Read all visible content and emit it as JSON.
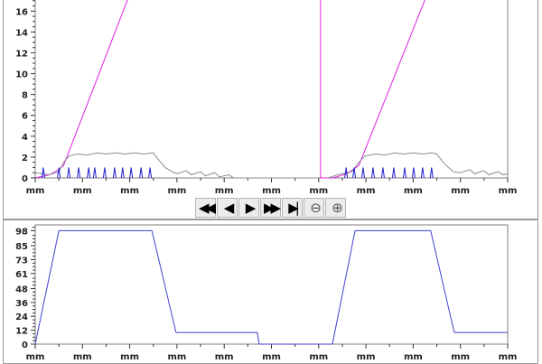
{
  "toolbar": {
    "buttons": [
      {
        "name": "rewind-button",
        "icon": "fast-backward-icon",
        "glyph": "◀◀"
      },
      {
        "name": "step-back-button",
        "icon": "step-backward-icon",
        "glyph": "◀"
      },
      {
        "name": "play-button",
        "icon": "play-icon",
        "glyph": "▶"
      },
      {
        "name": "fast-forward-button",
        "icon": "fast-forward-icon",
        "glyph": "▶▶"
      },
      {
        "name": "skip-end-button",
        "icon": "skip-to-end-icon",
        "glyph": "▶|"
      },
      {
        "name": "zoom-out-button",
        "icon": "zoom-out-icon",
        "glyph": "⊖"
      },
      {
        "name": "zoom-in-button",
        "icon": "zoom-in-icon",
        "glyph": "⊕"
      }
    ]
  },
  "chart_data": [
    {
      "type": "line",
      "xlabel": "",
      "ylabel": "",
      "x_tick_labels": [
        "mm",
        "mm",
        "mm",
        "mm",
        "mm",
        "mm",
        "mm",
        "mm",
        "mm",
        "mm",
        "mm"
      ],
      "y_ticks": [
        0,
        2,
        4,
        6,
        8,
        10,
        12,
        14,
        16
      ],
      "ylim": [
        0,
        17.5
      ],
      "grid": false,
      "series": [
        {
          "color": "#e020e0",
          "segments": [
            [
              [
                0,
                0
              ],
              [
                0.3,
                0.3
              ],
              [
                0.5,
                0.8
              ],
              [
                0.6,
                1.2
              ],
              [
                2.1,
                18.8
              ]
            ],
            [
              [
                6.04,
                18.8
              ],
              [
                6.04,
                0
              ],
              [
                6.3,
                0
              ],
              [
                6.6,
                0.4
              ],
              [
                6.85,
                1.2
              ],
              [
                8.4,
                18.8
              ]
            ]
          ]
        },
        {
          "color": "#8c8c8c",
          "segments": [
            [
              [
                0,
                0.5
              ],
              [
                0.3,
                0.3
              ],
              [
                0.5,
                0.6
              ],
              [
                0.6,
                1.5
              ],
              [
                0.72,
                2.1
              ],
              [
                0.9,
                2.3
              ],
              [
                1.1,
                2.2
              ],
              [
                1.3,
                2.4
              ],
              [
                1.5,
                2.3
              ],
              [
                1.7,
                2.4
              ],
              [
                1.9,
                2.3
              ],
              [
                2.1,
                2.4
              ],
              [
                2.3,
                2.3
              ],
              [
                2.5,
                2.4
              ],
              [
                2.6,
                1.8
              ],
              [
                2.75,
                1.0
              ],
              [
                2.9,
                0.6
              ],
              [
                3.0,
                0.4
              ],
              [
                3.2,
                0.7
              ],
              [
                3.3,
                0.3
              ],
              [
                3.5,
                0.6
              ],
              [
                3.6,
                0.2
              ],
              [
                3.8,
                0.5
              ],
              [
                3.9,
                0.1
              ],
              [
                4.1,
                0.3
              ],
              [
                4.2,
                0
              ],
              [
                6.0,
                0
              ]
            ],
            [
              [
                6.2,
                0
              ],
              [
                6.4,
                0.3
              ],
              [
                6.7,
                0.6
              ],
              [
                6.85,
                1.5
              ],
              [
                6.98,
                2.1
              ],
              [
                7.2,
                2.3
              ],
              [
                7.4,
                2.2
              ],
              [
                7.6,
                2.4
              ],
              [
                7.8,
                2.3
              ],
              [
                8.0,
                2.4
              ],
              [
                8.2,
                2.3
              ],
              [
                8.4,
                2.4
              ],
              [
                8.5,
                2.3
              ],
              [
                8.65,
                1.4
              ],
              [
                8.85,
                0.6
              ],
              [
                9.0,
                0.5
              ],
              [
                9.2,
                0.8
              ],
              [
                9.3,
                0.4
              ],
              [
                9.5,
                0.7
              ],
              [
                9.6,
                0.3
              ],
              [
                9.8,
                0.6
              ],
              [
                9.9,
                0.3
              ],
              [
                10,
                0.4
              ]
            ]
          ]
        },
        {
          "color": "#2020d0",
          "spikes": [
            0.17,
            0.5,
            0.71,
            0.92,
            1.13,
            1.26,
            1.47,
            1.68,
            1.85,
            2.03,
            2.24,
            2.43,
            6.58,
            6.75,
            6.94,
            7.15,
            7.36,
            7.59,
            7.82,
            8.01,
            8.2,
            8.39
          ],
          "spike_height": 1.0
        }
      ]
    },
    {
      "type": "line",
      "xlabel": "",
      "ylabel": "",
      "x_tick_labels": [
        "mm",
        "mm",
        "mm",
        "mm",
        "mm",
        "mm",
        "mm",
        "mm",
        "mm",
        "mm",
        "mm"
      ],
      "y_ticks": [
        0,
        12,
        24,
        36,
        48,
        61,
        73,
        85,
        98
      ],
      "ylim": [
        0,
        103
      ],
      "grid": false,
      "series": [
        {
          "color": "#4040d0",
          "segments": [
            [
              [
                0,
                0
              ],
              [
                0.5,
                98
              ],
              [
                2.47,
                98
              ],
              [
                2.98,
                10
              ],
              [
                4.7,
                10
              ],
              [
                4.74,
                0
              ],
              [
                6.29,
                0
              ],
              [
                6.77,
                98
              ],
              [
                8.37,
                98
              ],
              [
                8.87,
                10
              ],
              [
                10,
                10
              ]
            ]
          ]
        }
      ]
    }
  ]
}
